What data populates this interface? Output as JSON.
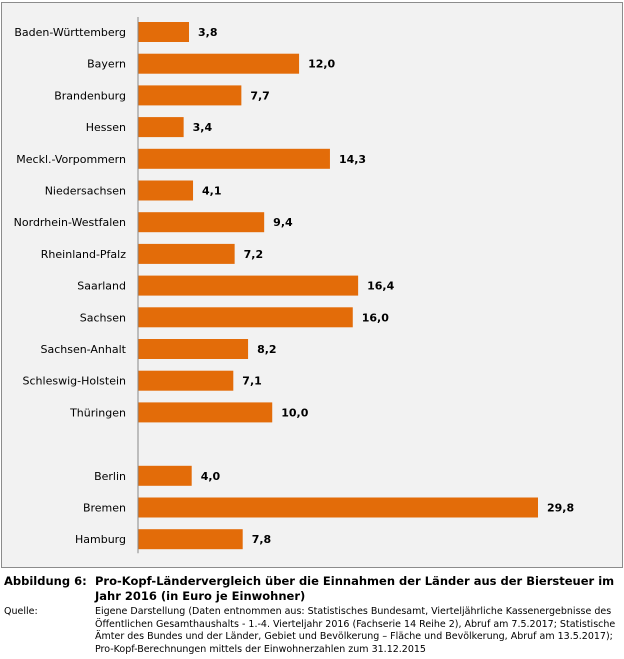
{
  "chart_data": {
    "type": "bar",
    "orientation": "horizontal",
    "categories": [
      "Baden-Württemberg",
      "Bayern",
      "Brandenburg",
      "Hessen",
      "Meckl.-Vorpommern",
      "Niedersachsen",
      "Nordrhein-Westfalen",
      "Rheinland-Pfalz",
      "Saarland",
      "Sachsen",
      "Sachsen-Anhalt",
      "Schleswig-Holstein",
      "Thüringen",
      "",
      "Berlin",
      "Bremen",
      "Hamburg"
    ],
    "values": [
      3.8,
      12.0,
      7.7,
      3.4,
      14.3,
      4.1,
      9.4,
      7.2,
      16.4,
      16.0,
      8.2,
      7.1,
      10.0,
      null,
      4.0,
      29.8,
      7.8
    ],
    "data_labels": [
      "3,8",
      "12,0",
      "7,7",
      "3,4",
      "14,3",
      "4,1",
      "9,4",
      "7,2",
      "16,4",
      "16,0",
      "8,2",
      "7,1",
      "10,0",
      "",
      "4,0",
      "29,8",
      "7,8"
    ],
    "xlim": [
      0,
      29.8
    ],
    "grid": false,
    "bar_color": "#E36C09",
    "background": "#F2F2F2"
  },
  "caption": {
    "label": "Abbildung 6:",
    "title": "Pro-Kopf-Ländervergleich über die Einnahmen der Länder aus der Biersteuer im Jahr 2016 (in Euro je Einwohner)",
    "source_label": "Quelle:",
    "source_text": "Eigene Darstellung (Daten entnommen aus: Statistisches Bundesamt, Vierteljährliche Kassenergebnisse des Öffentlichen Gesamthaushalts - 1.-4. Vierteljahr 2016 (Fachserie 14 Reihe 2), Abruf am 7.5.2017; Statistische Ämter des Bundes und der Länder, Gebiet und Bevölkerung – Fläche und Bevölkerung, Abruf am 13.5.2017); Pro-Kopf-Berechnungen mittels der Einwohnerzahlen zum 31.12.2015"
  }
}
